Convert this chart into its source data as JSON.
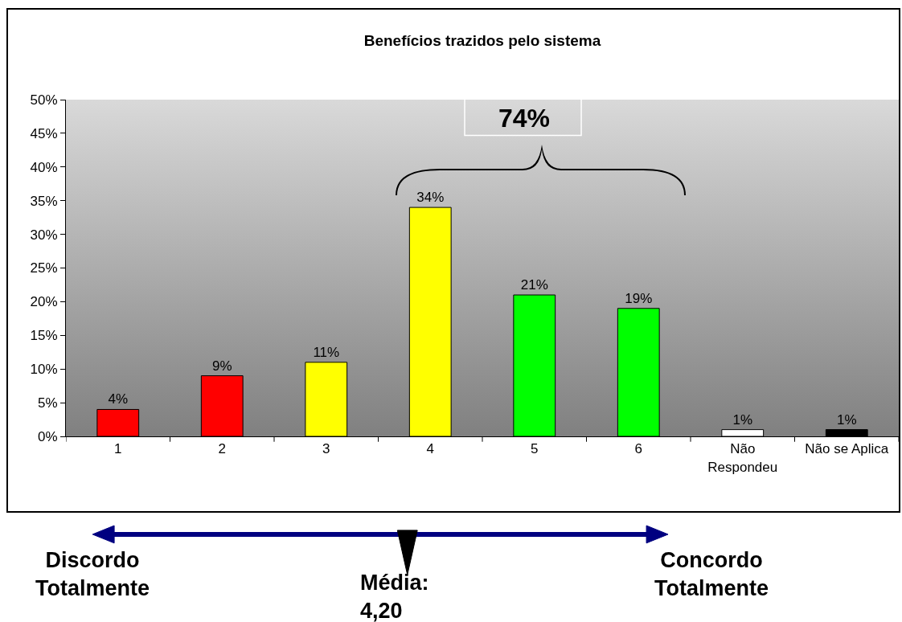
{
  "chart_data": {
    "type": "bar",
    "title": "Benefícios trazidos pelo sistema",
    "categories": [
      "1",
      "2",
      "3",
      "4",
      "5",
      "6",
      "Não\nRespondeu",
      "Não se Aplica"
    ],
    "values": [
      4,
      9,
      11,
      34,
      21,
      19,
      1,
      1
    ],
    "colors": [
      "#ff0000",
      "#ff0000",
      "#ffff00",
      "#ffff00",
      "#00ff00",
      "#00ff00",
      "#ffffff",
      "#000000"
    ],
    "value_labels": [
      "4%",
      "9%",
      "11%",
      "34%",
      "21%",
      "19%",
      "1%",
      "1%"
    ],
    "ylim": [
      0,
      50
    ],
    "yticks": [
      {
        "value": 0,
        "label": "0%"
      },
      {
        "value": 5,
        "label": "5%"
      },
      {
        "value": 10,
        "label": "10%"
      },
      {
        "value": 15,
        "label": "15%"
      },
      {
        "value": 20,
        "label": "20%"
      },
      {
        "value": 25,
        "label": "25%"
      },
      {
        "value": 30,
        "label": "30%"
      },
      {
        "value": 35,
        "label": "35%"
      },
      {
        "value": 40,
        "label": "40%"
      },
      {
        "value": 45,
        "label": "45%"
      },
      {
        "value": 50,
        "label": "50%"
      }
    ],
    "grid": false,
    "annotations": [
      "74%",
      "Discordo\nTotalmente",
      "Média:\n4,20",
      "Concordo\nTotalmente"
    ]
  }
}
